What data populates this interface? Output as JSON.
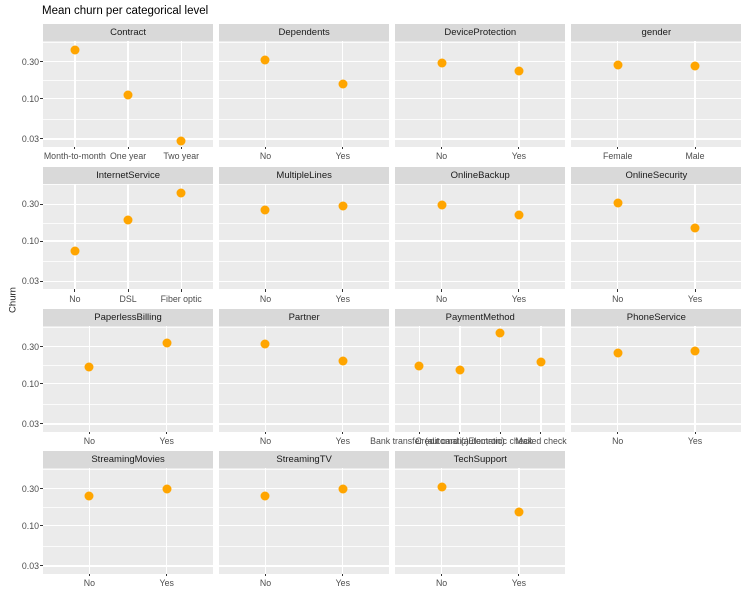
{
  "title": "Mean churn per categorical level",
  "style": {
    "point_color": "#FFA500",
    "panel_bg": "#EBEBEB",
    "strip_bg": "#D9D9D9",
    "grid_color": "#FFFFFF",
    "axis_text_color": "#4D4D4D",
    "tick_mark_color": "#333333"
  },
  "chart_data": {
    "type": "scatter",
    "title": "Mean churn per categorical level",
    "xlabel": "",
    "ylabel": "Churn",
    "y_scale": "log10",
    "ylim": [
      0.0239,
      0.558
    ],
    "y_ticks": [
      0.3,
      0.1,
      0.03
    ],
    "y_tick_labels": [
      "0.30",
      "0.10",
      "0.03"
    ],
    "y_minor_gridline_values": [
      0.548,
      0.1732,
      0.0548
    ],
    "grid": true,
    "legend_position": "none",
    "facet_grid": {
      "ncol": 4,
      "nrow": 4
    },
    "facets": [
      {
        "title": "Contract",
        "categories": [
          "Month-to-month",
          "One year",
          "Two year"
        ],
        "values": [
          0.427,
          0.113,
          0.028
        ]
      },
      {
        "title": "Dependents",
        "categories": [
          "No",
          "Yes"
        ],
        "values": [
          0.313,
          0.155
        ]
      },
      {
        "title": "DeviceProtection",
        "categories": [
          "No",
          "Yes"
        ],
        "values": [
          0.287,
          0.225
        ]
      },
      {
        "title": "gender",
        "categories": [
          "Female",
          "Male"
        ],
        "values": [
          0.269,
          0.262
        ]
      },
      {
        "title": "InternetService",
        "categories": [
          "No",
          "DSL",
          "Fiber optic"
        ],
        "values": [
          0.074,
          0.19,
          0.419
        ]
      },
      {
        "title": "MultipleLines",
        "categories": [
          "No",
          "Yes"
        ],
        "values": [
          0.25,
          0.286
        ]
      },
      {
        "title": "OnlineBackup",
        "categories": [
          "No",
          "Yes"
        ],
        "values": [
          0.292,
          0.215
        ]
      },
      {
        "title": "OnlineSecurity",
        "categories": [
          "No",
          "Yes"
        ],
        "values": [
          0.313,
          0.146
        ]
      },
      {
        "title": "PaperlessBilling",
        "categories": [
          "No",
          "Yes"
        ],
        "values": [
          0.163,
          0.336
        ]
      },
      {
        "title": "Partner",
        "categories": [
          "No",
          "Yes"
        ],
        "values": [
          0.33,
          0.197
        ]
      },
      {
        "title": "PaymentMethod",
        "categories": [
          "Bank transfer (automatic)",
          "Credit card (automatic)",
          "Electronic check",
          "Mailed check"
        ],
        "values": [
          0.167,
          0.152,
          0.453,
          0.191
        ]
      },
      {
        "title": "PhoneService",
        "categories": [
          "No",
          "Yes"
        ],
        "values": [
          0.249,
          0.267
        ]
      },
      {
        "title": "StreamingMovies",
        "categories": [
          "No",
          "Yes"
        ],
        "values": [
          0.244,
          0.299
        ]
      },
      {
        "title": "StreamingTV",
        "categories": [
          "No",
          "Yes"
        ],
        "values": [
          0.243,
          0.301
        ]
      },
      {
        "title": "TechSupport",
        "categories": [
          "No",
          "Yes"
        ],
        "values": [
          0.312,
          0.152
        ]
      }
    ]
  }
}
